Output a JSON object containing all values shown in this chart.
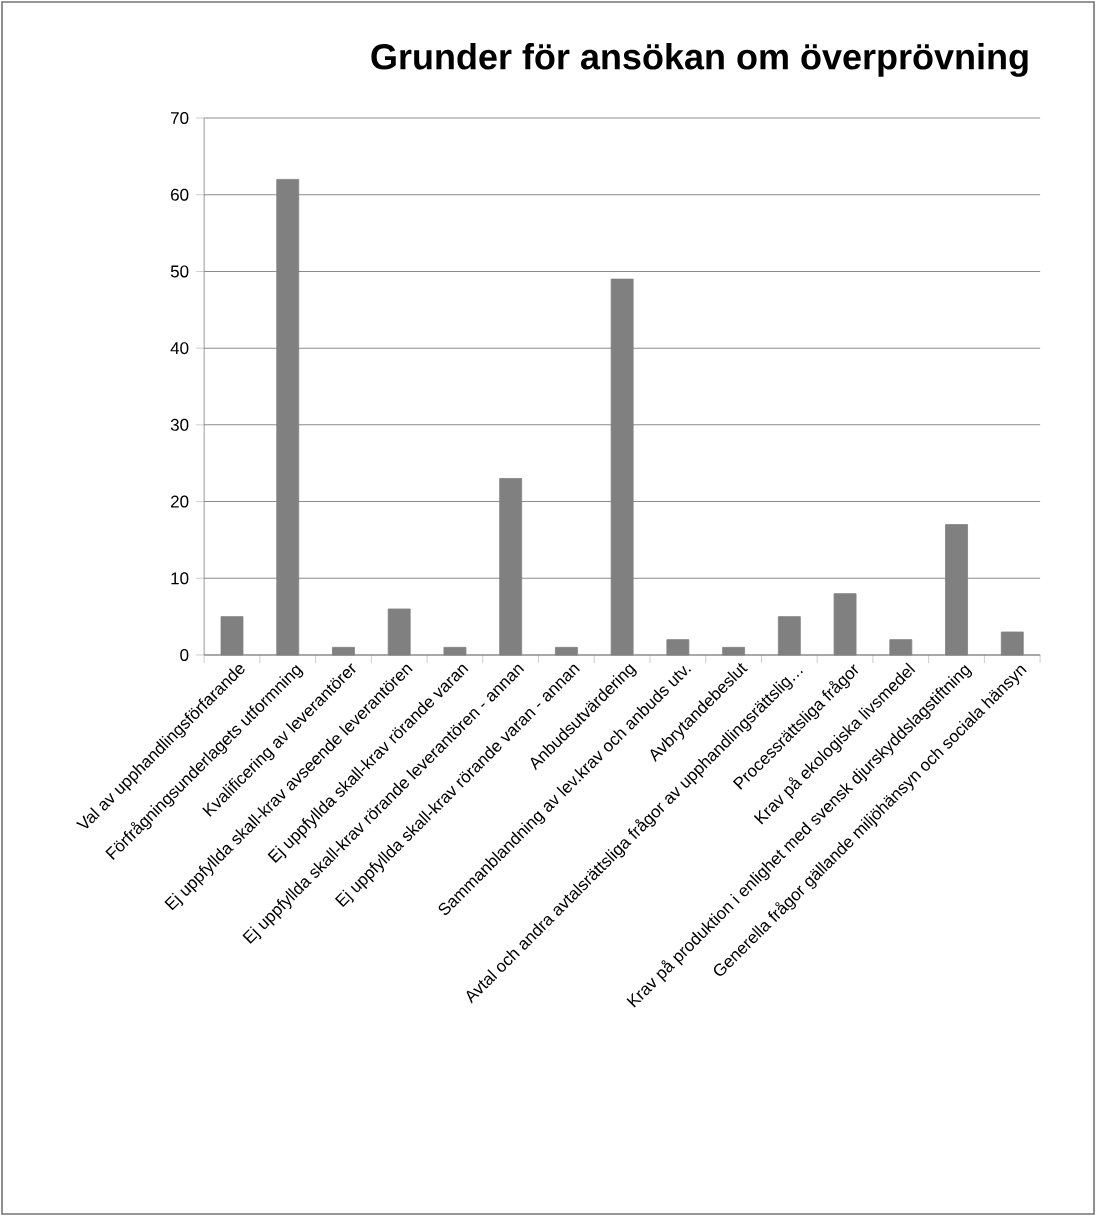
{
  "chart_data": {
    "type": "bar",
    "title": "Grunder för ansökan om överprövning",
    "categories": [
      "Val av upphandlingsförfarande",
      "Förfrågningsunderlagets utformning",
      "Kvalificering av leverantörer",
      "Ej uppfyllda skall-krav avseende leverantören",
      "Ej uppfyllda skall-krav rörande varan",
      "Ej uppfyllda skall-krav rörande leverantören - annan",
      "Ej uppfyllda skall-krav rörande varan - annan",
      "Anbudsutvärdering",
      "Sammanblandning av lev.krav och anbuds utv.",
      "Avbrytandebeslut",
      "Avtal och andra avtalsrättsliga frågor av upphandlingsrättslig…",
      "Processrättsliga frågor",
      "Krav på ekologiska livsmedel",
      "Krav på produktion i enlighet med svensk djurskyddslagstiftning",
      "Generella frågor gällande miljöhänsyn och sociala hänsyn"
    ],
    "values": [
      5,
      62,
      1,
      6,
      1,
      23,
      1,
      49,
      2,
      1,
      5,
      8,
      2,
      17,
      3
    ],
    "color": "#808080",
    "ylim": [
      0,
      70
    ],
    "yticks": [
      0,
      10,
      20,
      30,
      40,
      50,
      60,
      70
    ],
    "grid": "y"
  }
}
